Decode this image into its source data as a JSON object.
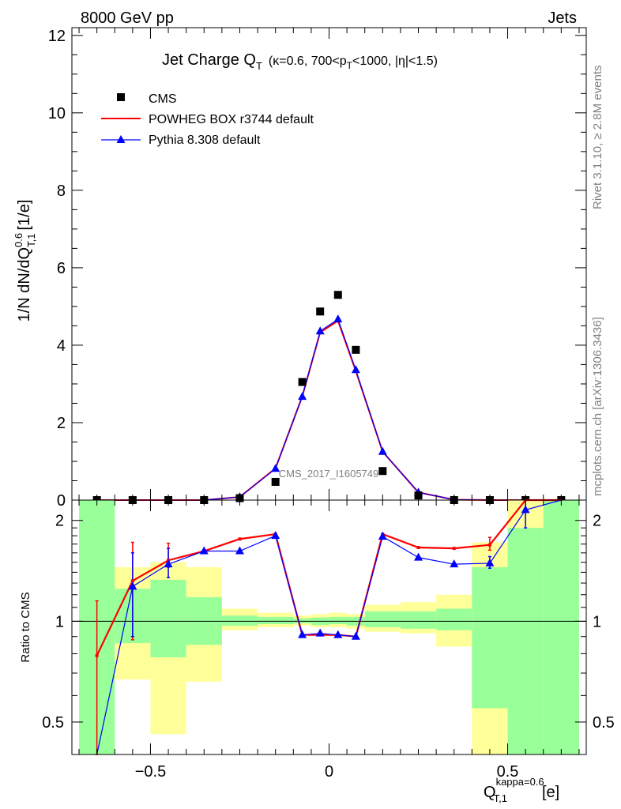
{
  "header": {
    "left": "8000 GeV pp",
    "right": "Jets"
  },
  "side_text": {
    "rivet": "Rivet 3.1.10, ≥ 2.8M events",
    "mcplots": "mcplots.cern.ch [arXiv:1306.3436]"
  },
  "chart_data": [
    {
      "type": "scatter",
      "title": "Jet Charge Q_T (κ=0.6, 700<p_T<1000, |η|<1.5)",
      "title_main": "Jet Charge Q",
      "title_sub": "T",
      "title_extra": "(κ=0.6, 700<p",
      "title_extra_sub": "T",
      "title_extra2": "<1000, |η|<1.5)",
      "ylabel": "1/N dN/dQ",
      "ylabel_sup": "0.6",
      "ylabel_sub": "T,1",
      "ylabel_unit": "[1/e]",
      "xlim": [
        -0.72,
        0.72
      ],
      "ylim": [
        0,
        12.2
      ],
      "yticks": [
        0,
        2,
        4,
        6,
        8,
        10,
        12
      ],
      "watermark": "CMS_2017_I1605749",
      "legend_position": "top-left",
      "x": [
        -0.65,
        -0.55,
        -0.45,
        -0.35,
        -0.25,
        -0.15,
        -0.075,
        -0.025,
        0.025,
        0.075,
        0.15,
        0.25,
        0.35,
        0.45,
        0.55,
        0.65
      ],
      "series": [
        {
          "name": "CMS",
          "color": "#000000",
          "marker": "square",
          "values": [
            0.0,
            0.0,
            0.0,
            0.0,
            0.05,
            0.47,
            3.05,
            4.87,
            5.3,
            3.88,
            0.75,
            0.12,
            0.0,
            0.0,
            0.0,
            0.0
          ]
        },
        {
          "name": "POWHEG BOX r3744 default",
          "color": "#ff0000",
          "marker": "line",
          "values": [
            0.0,
            0.0,
            0.0,
            0.0,
            0.08,
            0.82,
            2.68,
            4.33,
            4.63,
            3.33,
            1.25,
            0.2,
            0.01,
            0.0,
            0.0,
            0.0
          ]
        },
        {
          "name": "Pythia 8.308 default",
          "color": "#0000ff",
          "marker": "triangle",
          "values": [
            0.0,
            0.0,
            0.0,
            0.0,
            0.08,
            0.81,
            2.67,
            4.36,
            4.67,
            3.36,
            1.25,
            0.2,
            0.01,
            0.0,
            0.0,
            0.0
          ]
        }
      ]
    },
    {
      "type": "line",
      "ylabel": "Ratio to CMS",
      "xlabel": "Q",
      "xlabel_sup": "kappa=0.6",
      "xlabel_sub": "T,1",
      "xlabel_unit": "[e]",
      "xlim": [
        -0.72,
        0.72
      ],
      "ylim": [
        0.4,
        2.3
      ],
      "yscale": "log",
      "xticks": [
        -0.5,
        0,
        0.5
      ],
      "yticks": [
        0.5,
        1,
        2
      ],
      "reference_line": 1,
      "bins": [
        {
          "lo": -0.7,
          "hi": -0.6,
          "g": [
            0.0,
            99
          ],
          "y": [
            0.0,
            99
          ]
        },
        {
          "lo": -0.6,
          "hi": -0.5,
          "g": [
            0.86,
            1.25
          ],
          "y": [
            0.67,
            1.45
          ]
        },
        {
          "lo": -0.5,
          "hi": -0.4,
          "g": [
            0.78,
            1.33
          ],
          "y": [
            0.46,
            1.5
          ]
        },
        {
          "lo": -0.4,
          "hi": -0.3,
          "g": [
            0.85,
            1.18
          ],
          "y": [
            0.66,
            1.45
          ]
        },
        {
          "lo": -0.3,
          "hi": -0.2,
          "g": [
            0.97,
            1.04
          ],
          "y": [
            0.94,
            1.09
          ]
        },
        {
          "lo": -0.2,
          "hi": -0.1,
          "g": [
            0.98,
            1.03
          ],
          "y": [
            0.96,
            1.06
          ]
        },
        {
          "lo": -0.1,
          "hi": -0.05,
          "g": [
            0.985,
            1.02
          ],
          "y": [
            0.97,
            1.04
          ]
        },
        {
          "lo": -0.05,
          "hi": 0.0,
          "g": [
            0.975,
            1.025
          ],
          "y": [
            0.96,
            1.05
          ]
        },
        {
          "lo": 0.0,
          "hi": 0.05,
          "g": [
            0.98,
            1.03
          ],
          "y": [
            0.96,
            1.06
          ]
        },
        {
          "lo": 0.05,
          "hi": 0.1,
          "g": [
            0.97,
            1.03
          ],
          "y": [
            0.95,
            1.05
          ]
        },
        {
          "lo": 0.1,
          "hi": 0.2,
          "g": [
            0.96,
            1.07
          ],
          "y": [
            0.93,
            1.12
          ]
        },
        {
          "lo": 0.2,
          "hi": 0.3,
          "g": [
            0.95,
            1.07
          ],
          "y": [
            0.92,
            1.14
          ]
        },
        {
          "lo": 0.3,
          "hi": 0.4,
          "g": [
            0.94,
            1.09
          ],
          "y": [
            0.84,
            1.2
          ]
        },
        {
          "lo": 0.4,
          "hi": 0.5,
          "g": [
            0.55,
            1.45
          ],
          "y": [
            0.4,
            1.72
          ]
        },
        {
          "lo": 0.5,
          "hi": 0.6,
          "g": [
            0.0,
            1.9
          ],
          "y": [
            0.0,
            99
          ]
        },
        {
          "lo": 0.6,
          "hi": 0.7,
          "g": [
            0.0,
            99
          ],
          "y": [
            0.0,
            99
          ]
        }
      ],
      "series": [
        {
          "name": "POWHEG BOX r3744 default",
          "color": "#ff0000",
          "values": [
            0.79,
            1.32,
            1.52,
            1.62,
            1.76,
            1.82,
            0.91,
            0.91,
            0.91,
            0.9,
            1.82,
            1.66,
            1.65,
            1.69,
            2.5,
            2.5
          ],
          "err": [
            [
              0.3,
              1.15
            ],
            [
              0.88,
              1.72
            ],
            [
              1.45,
              1.71
            ],
            null,
            null,
            null,
            null,
            null,
            null,
            null,
            null,
            null,
            null,
            [
              1.63,
              1.78
            ],
            null,
            null
          ]
        },
        {
          "name": "Pythia 8.308 default",
          "color": "#0000ff",
          "values": [
            0.3,
            1.27,
            1.48,
            1.62,
            1.62,
            1.8,
            0.91,
            0.92,
            0.91,
            0.9,
            1.79,
            1.55,
            1.48,
            1.49,
            2.15,
            2.5
          ],
          "err": [
            null,
            [
              0.9,
              1.6
            ],
            [
              1.35,
              1.65
            ],
            null,
            null,
            null,
            null,
            null,
            null,
            null,
            null,
            null,
            null,
            [
              1.44,
              1.56
            ],
            [
              1.9,
              2.3
            ],
            null
          ]
        }
      ]
    }
  ]
}
